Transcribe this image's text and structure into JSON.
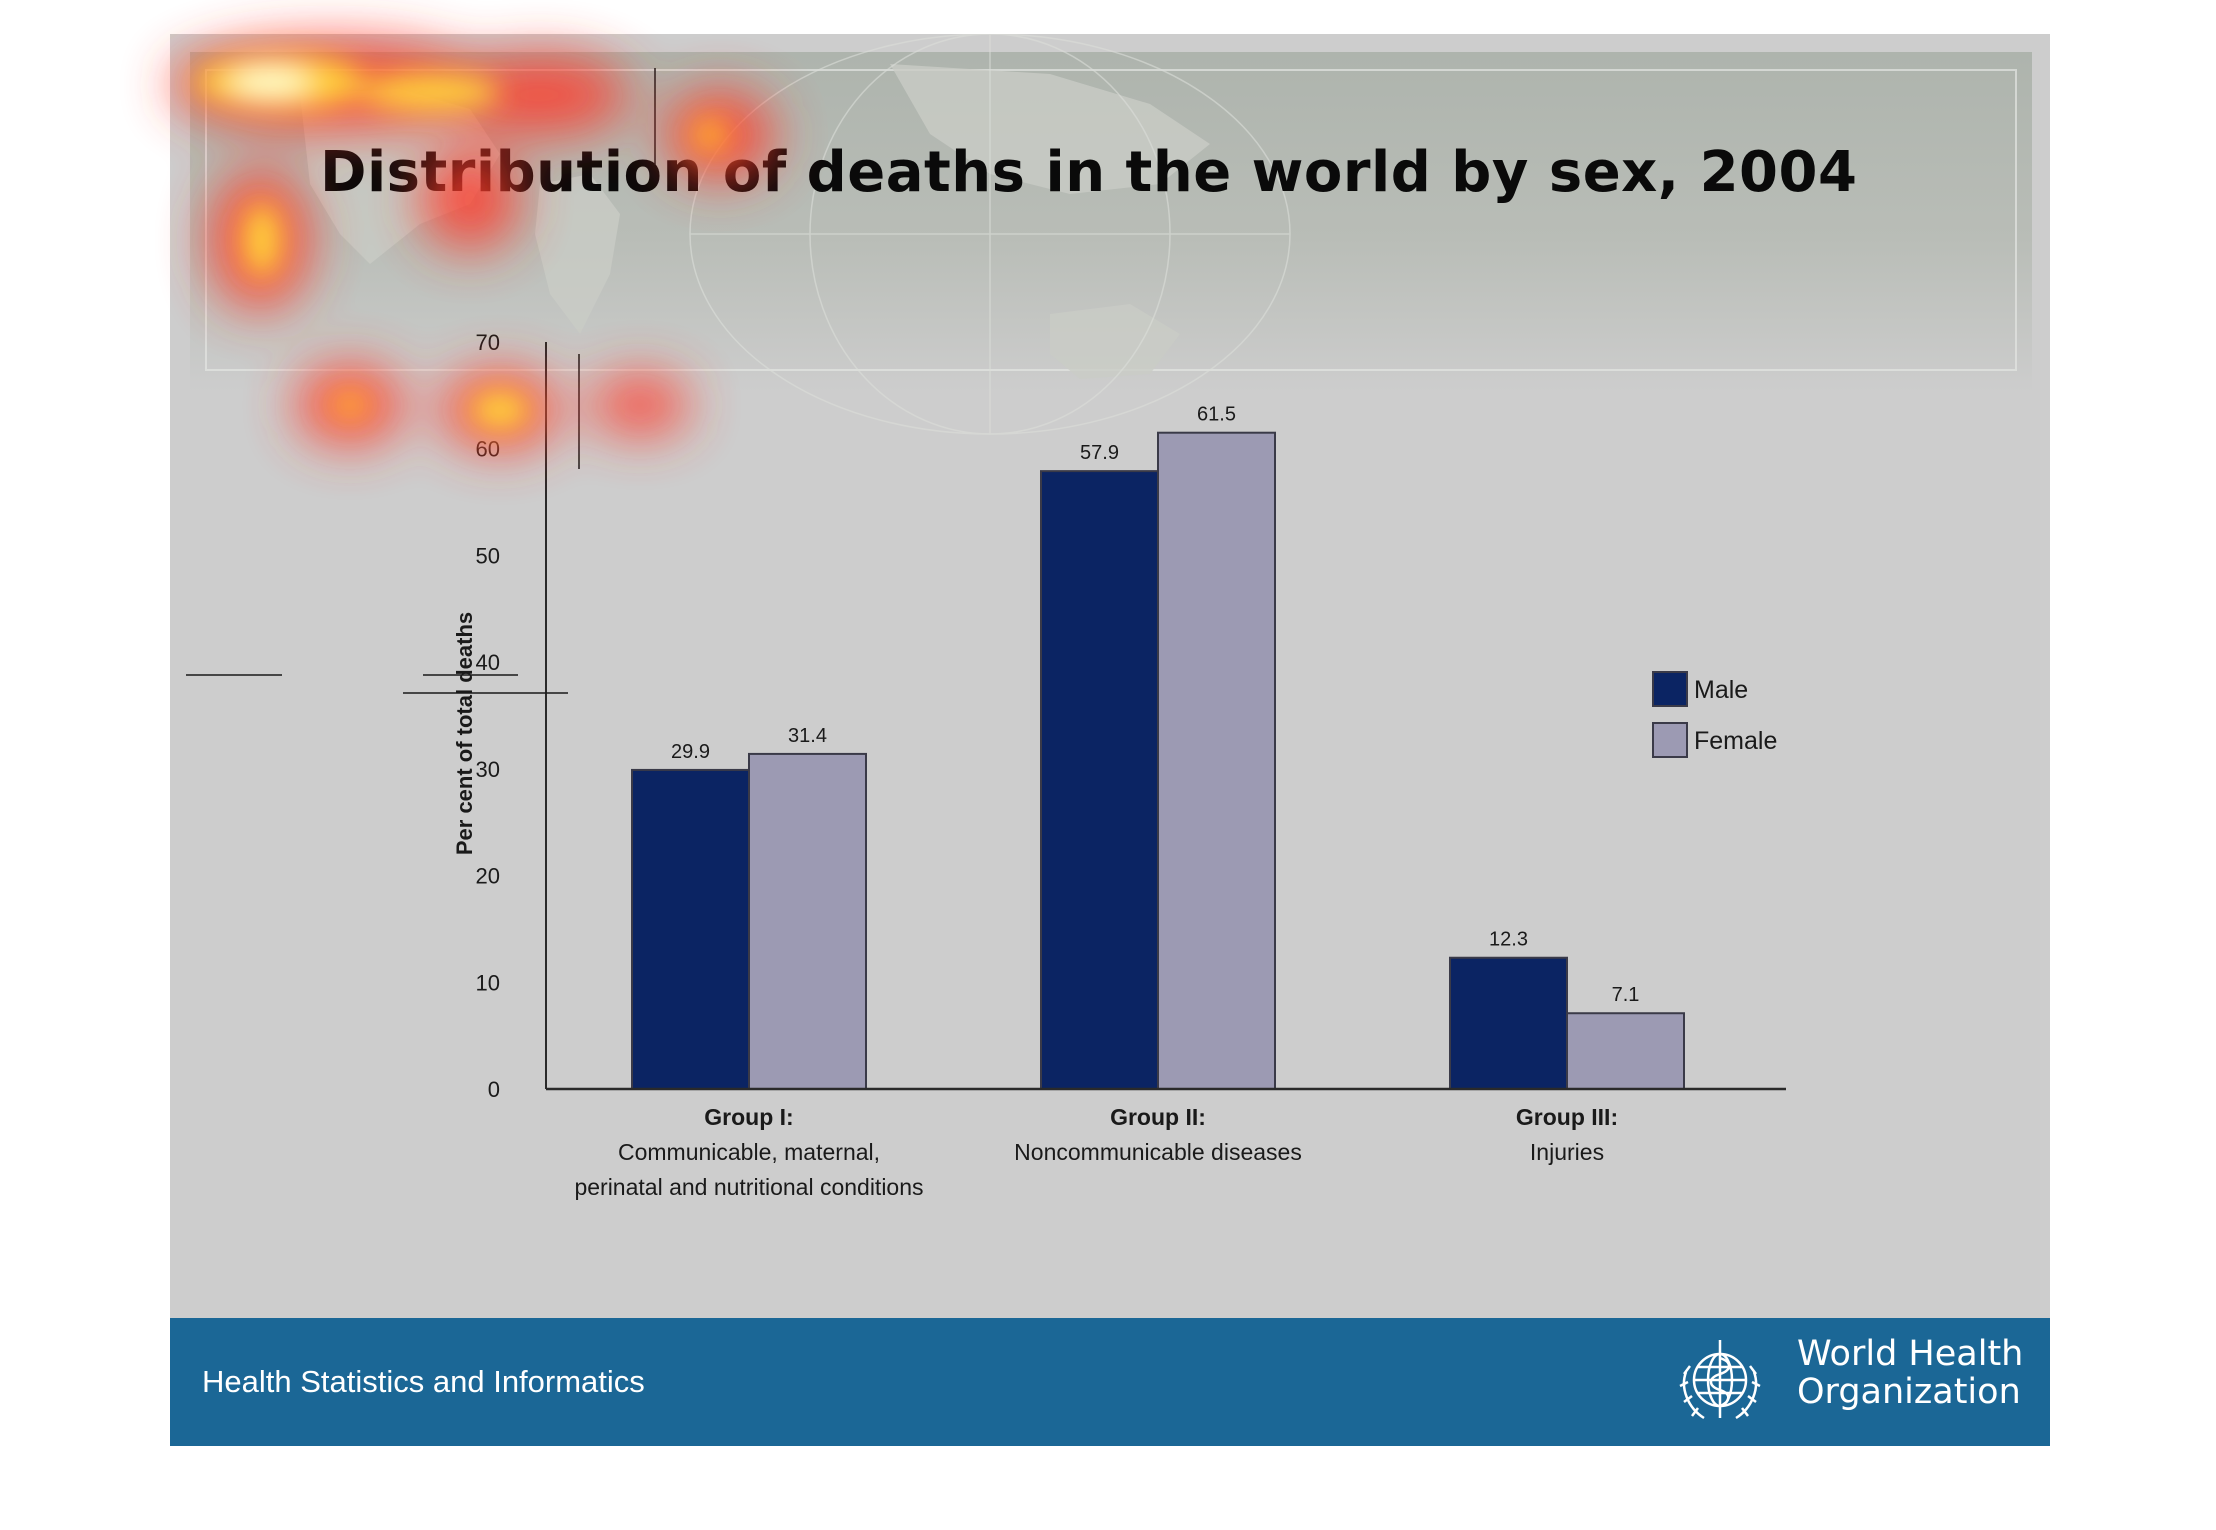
{
  "slide": {
    "title": "Distribution of deaths in the world by sex, 2004",
    "footer_text": "Health Statistics and Informatics",
    "org_name_line1": "World Health",
    "org_name_line2": "Organization",
    "logo_icon": "who-emblem-icon",
    "colors": {
      "footer": "#1b6796",
      "background": "#cdcdcd"
    }
  },
  "chart_data": {
    "type": "bar",
    "title": "Distribution of deaths in the world by sex, 2004",
    "ylabel": "Per cent of total deaths",
    "xlabel": "",
    "ylim": [
      0,
      70
    ],
    "yticks": [
      0,
      10,
      20,
      30,
      40,
      50,
      60,
      70
    ],
    "grid": false,
    "legend_position": "right",
    "categories": [
      {
        "name": "Group I:",
        "desc": [
          "Communicable, maternal,",
          "perinatal and nutritional conditions"
        ]
      },
      {
        "name": "Group II:",
        "desc": [
          "Noncommunicable diseases"
        ]
      },
      {
        "name": "Group III:",
        "desc": [
          "Injuries"
        ]
      }
    ],
    "series": [
      {
        "name": "Male",
        "color": "#0b2463",
        "values": [
          29.9,
          57.9,
          12.3
        ]
      },
      {
        "name": "Female",
        "color": "#9c9ab3",
        "values": [
          31.4,
          61.5,
          7.1
        ]
      }
    ]
  }
}
